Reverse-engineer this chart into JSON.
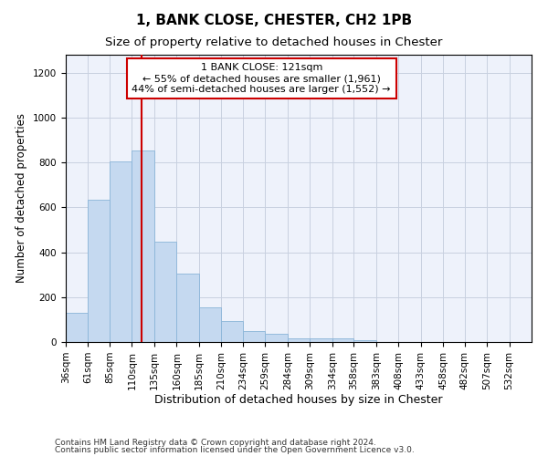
{
  "title": "1, BANK CLOSE, CHESTER, CH2 1PB",
  "subtitle": "Size of property relative to detached houses in Chester",
  "xlabel": "Distribution of detached houses by size in Chester",
  "ylabel": "Number of detached properties",
  "footnote1": "Contains HM Land Registry data © Crown copyright and database right 2024.",
  "footnote2": "Contains public sector information licensed under the Open Government Licence v3.0.",
  "annotation_line1": "1 BANK CLOSE: 121sqm",
  "annotation_line2": "← 55% of detached houses are smaller (1,961)",
  "annotation_line3": "44% of semi-detached houses are larger (1,552) →",
  "bar_edges": [
    36,
    61,
    85,
    110,
    135,
    160,
    185,
    210,
    234,
    259,
    284,
    309,
    334,
    358,
    383,
    408,
    433,
    458,
    482,
    507,
    532,
    557
  ],
  "counts": [
    130,
    635,
    805,
    855,
    445,
    305,
    155,
    95,
    50,
    38,
    15,
    18,
    18,
    10,
    0,
    0,
    0,
    0,
    0,
    0,
    0
  ],
  "tick_labels": [
    "36sqm",
    "61sqm",
    "85sqm",
    "110sqm",
    "135sqm",
    "160sqm",
    "185sqm",
    "210sqm",
    "234sqm",
    "259sqm",
    "284sqm",
    "309sqm",
    "334sqm",
    "358sqm",
    "383sqm",
    "408sqm",
    "433sqm",
    "458sqm",
    "482sqm",
    "507sqm",
    "532sqm"
  ],
  "bar_color": "#c5d9f0",
  "bar_edge_color": "#8ab4d8",
  "vline_color": "#cc0000",
  "vline_x": 121,
  "annotation_box_color": "#cc0000",
  "ylim": [
    0,
    1280
  ],
  "yticks": [
    0,
    200,
    400,
    600,
    800,
    1000,
    1200
  ],
  "grid_color": "#c8d0e0",
  "bg_color": "#eef2fb",
  "title_fontsize": 11,
  "subtitle_fontsize": 9.5,
  "xlabel_fontsize": 9,
  "ylabel_fontsize": 8.5,
  "tick_fontsize": 7.5,
  "annotation_fontsize": 8,
  "footnote_fontsize": 6.5
}
